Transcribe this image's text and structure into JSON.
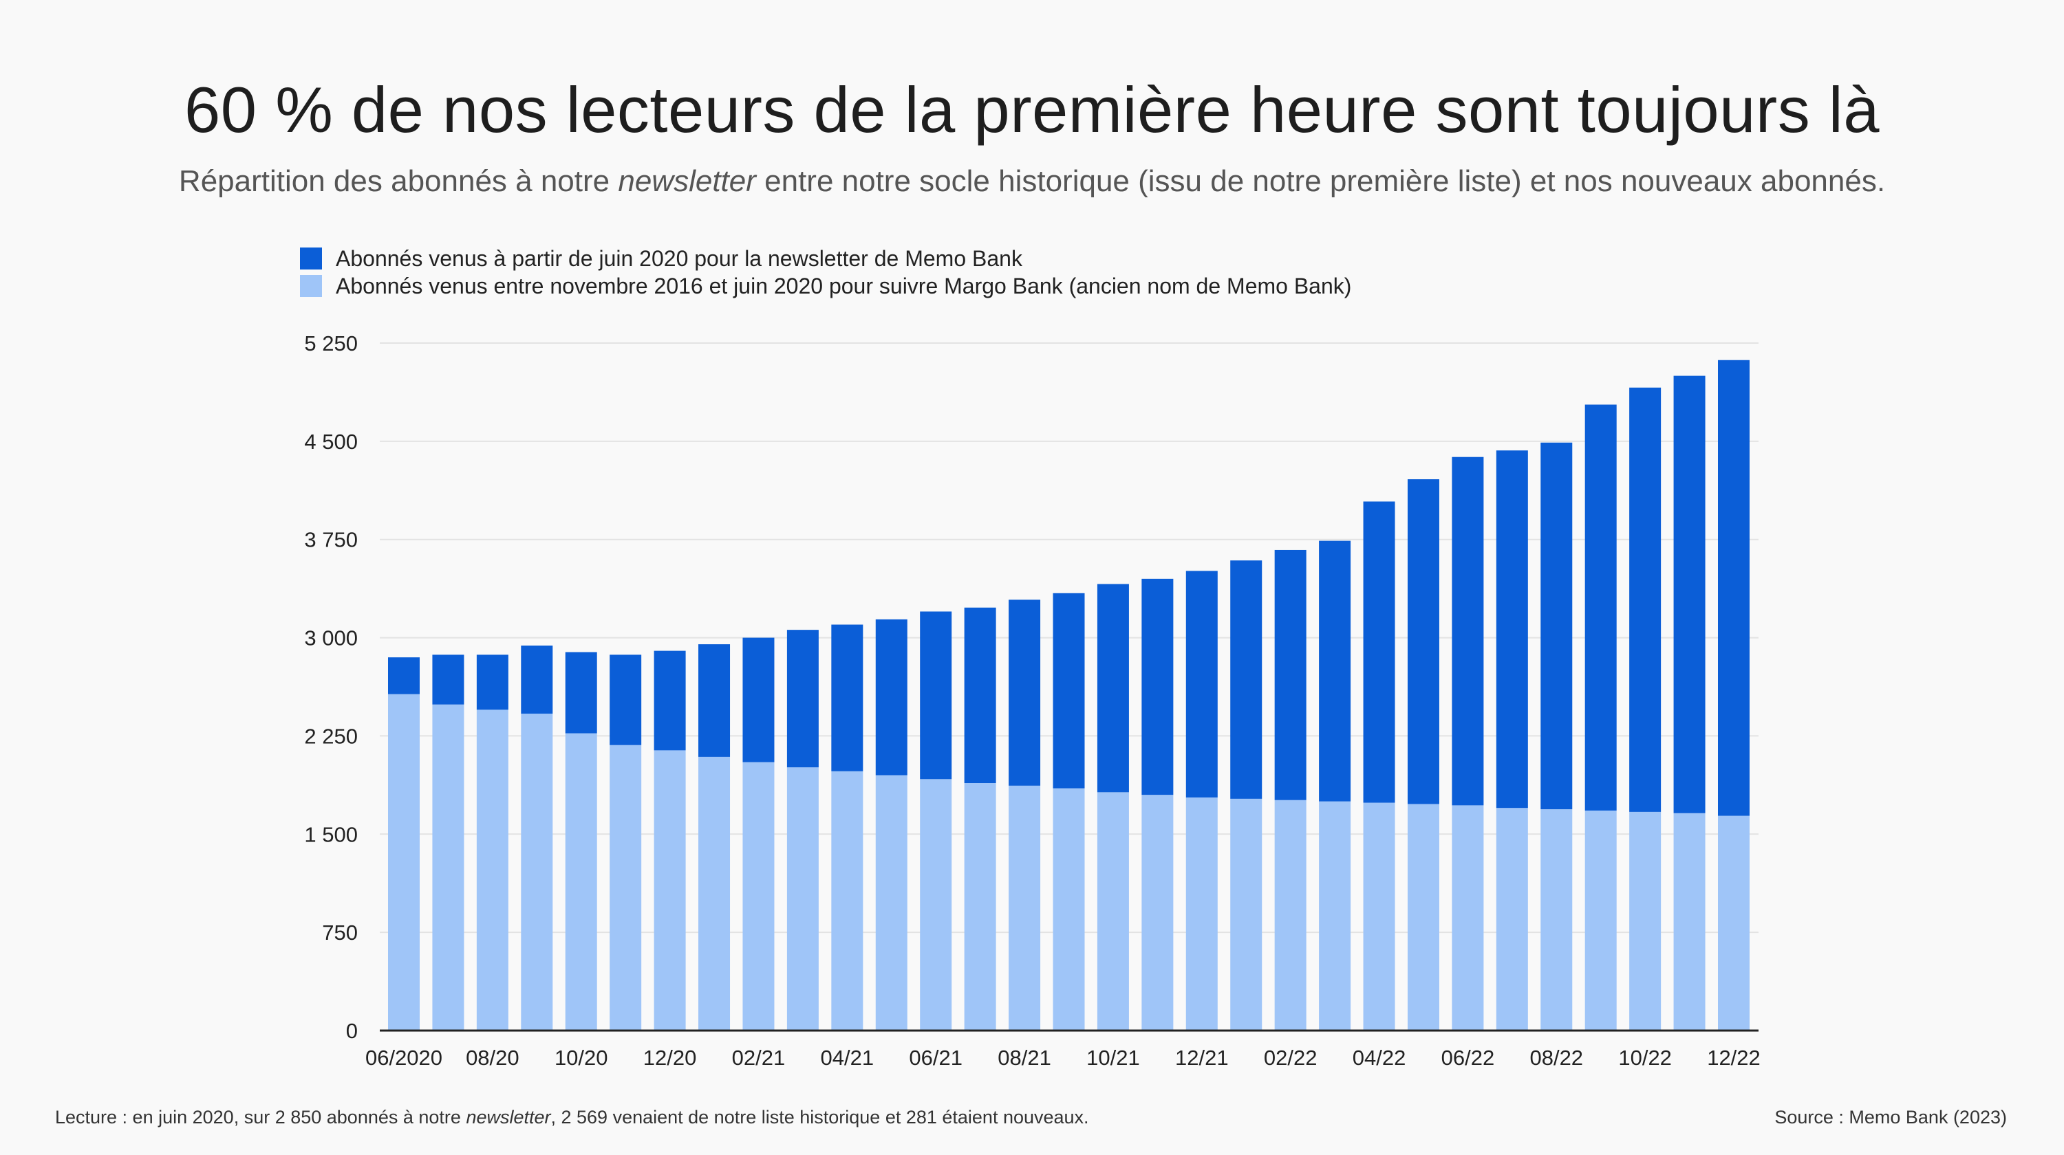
{
  "header": {
    "title": "60 % de nos lecteurs de la première heure sont toujours là",
    "subtitle_before": "Répartition des abonnés à notre ",
    "subtitle_em": "newsletter",
    "subtitle_after": " entre notre socle historique (issu de notre première liste) et nos nouveaux abonnés."
  },
  "legend": {
    "new_label": "Abonnés venus à partir de juin 2020 pour la newsletter de Memo Bank",
    "historic_label": "Abonnés venus entre novembre 2016 et juin 2020 pour suivre Margo Bank (ancien nom de Memo Bank)"
  },
  "footer": {
    "note_before": "Lecture : en juin 2020, sur 2 850 abonnés à notre ",
    "note_em": "newsletter",
    "note_after": ", 2 569 venaient de notre liste historique et 281 étaient nouveaux.",
    "source": "Source : Memo Bank (2023)"
  },
  "colors": {
    "new": "#0b5ed7",
    "historic": "#9fc5f8",
    "grid": "#e3e3e3",
    "axis": "#222222",
    "text": "#222222"
  },
  "chart_data": {
    "type": "bar",
    "stacked": true,
    "categories": [
      "06/2020",
      "07/20",
      "08/20",
      "09/20",
      "10/20",
      "11/20",
      "12/20",
      "01/21",
      "02/21",
      "03/21",
      "04/21",
      "05/21",
      "06/21",
      "07/21",
      "08/21",
      "09/21",
      "10/21",
      "11/21",
      "12/21",
      "01/22",
      "02/22",
      "03/22",
      "04/22",
      "05/22",
      "06/22",
      "07/22",
      "08/22",
      "09/22",
      "10/22",
      "11/22",
      "12/22"
    ],
    "x_tick_labels": [
      "06/2020",
      "",
      "08/20",
      "",
      "10/20",
      "",
      "12/20",
      "",
      "02/21",
      "",
      "04/21",
      "",
      "06/21",
      "",
      "08/21",
      "",
      "10/21",
      "",
      "12/21",
      "",
      "02/22",
      "",
      "04/22",
      "",
      "06/22",
      "",
      "08/22",
      "",
      "10/22",
      "",
      "12/22"
    ],
    "series": [
      {
        "name": "Abonnés venus entre novembre 2016 et juin 2020 pour suivre Margo Bank (ancien nom de Memo Bank)",
        "color_key": "historic",
        "values": [
          2569,
          2490,
          2450,
          2420,
          2270,
          2180,
          2140,
          2090,
          2050,
          2010,
          1980,
          1950,
          1920,
          1890,
          1870,
          1850,
          1820,
          1800,
          1780,
          1770,
          1760,
          1750,
          1740,
          1730,
          1720,
          1700,
          1690,
          1680,
          1670,
          1660,
          1640
        ]
      },
      {
        "name": "Abonnés venus à partir de juin 2020 pour la newsletter de Memo Bank",
        "color_key": "new",
        "values": [
          281,
          380,
          420,
          520,
          620,
          690,
          760,
          860,
          950,
          1050,
          1120,
          1190,
          1280,
          1340,
          1420,
          1490,
          1590,
          1650,
          1730,
          1820,
          1910,
          1990,
          2300,
          2480,
          2660,
          2730,
          2800,
          3100,
          3240,
          3340,
          3480
        ]
      }
    ],
    "y_ticks": [
      0,
      750,
      1500,
      2250,
      3000,
      3750,
      4500,
      5250
    ],
    "y_tick_labels": [
      "0",
      "750",
      "1 500",
      "2 250",
      "3 000",
      "3 750",
      "4 500",
      "5 250"
    ],
    "ylim": [
      0,
      5250
    ],
    "xlabel": "",
    "ylabel": "",
    "grid": true,
    "legend_position": "top-left"
  }
}
